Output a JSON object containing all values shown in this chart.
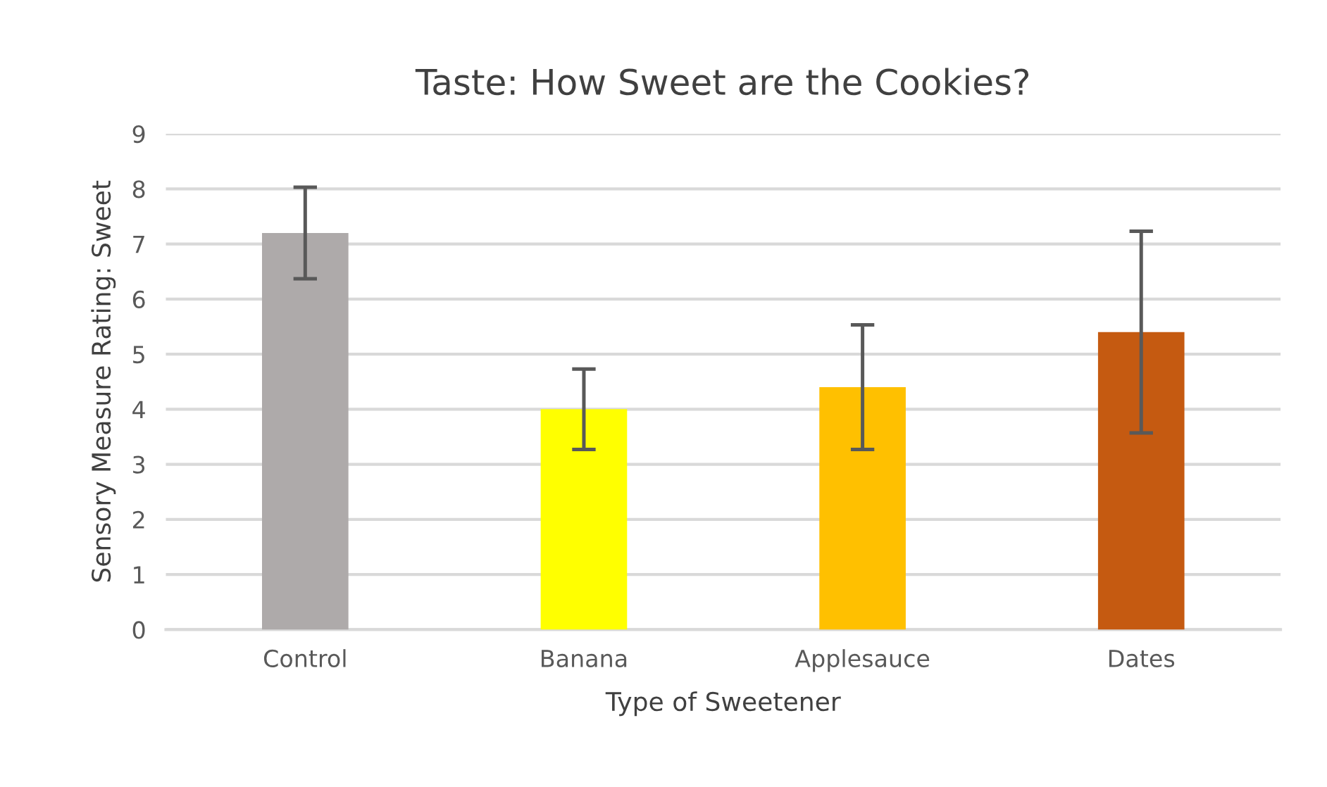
{
  "chart_data": {
    "type": "bar",
    "title": "Taste: How Sweet are the Cookies?",
    "xlabel": "Type of Sweetener",
    "ylabel": "Sensory Measure Rating: Sweet",
    "categories": [
      "Control",
      "Banana",
      "Applesauce",
      "Dates"
    ],
    "values": [
      7.2,
      4.0,
      4.4,
      5.4
    ],
    "errors": [
      0.83,
      0.73,
      1.13,
      1.83
    ],
    "colors": [
      "#aeaaaa",
      "#ffff00",
      "#ffc000",
      "#c55a11"
    ],
    "ylim": [
      0,
      9
    ],
    "yticks": [
      0,
      1,
      2,
      3,
      4,
      5,
      6,
      7,
      8,
      9
    ],
    "grid": "y",
    "legend": false
  }
}
